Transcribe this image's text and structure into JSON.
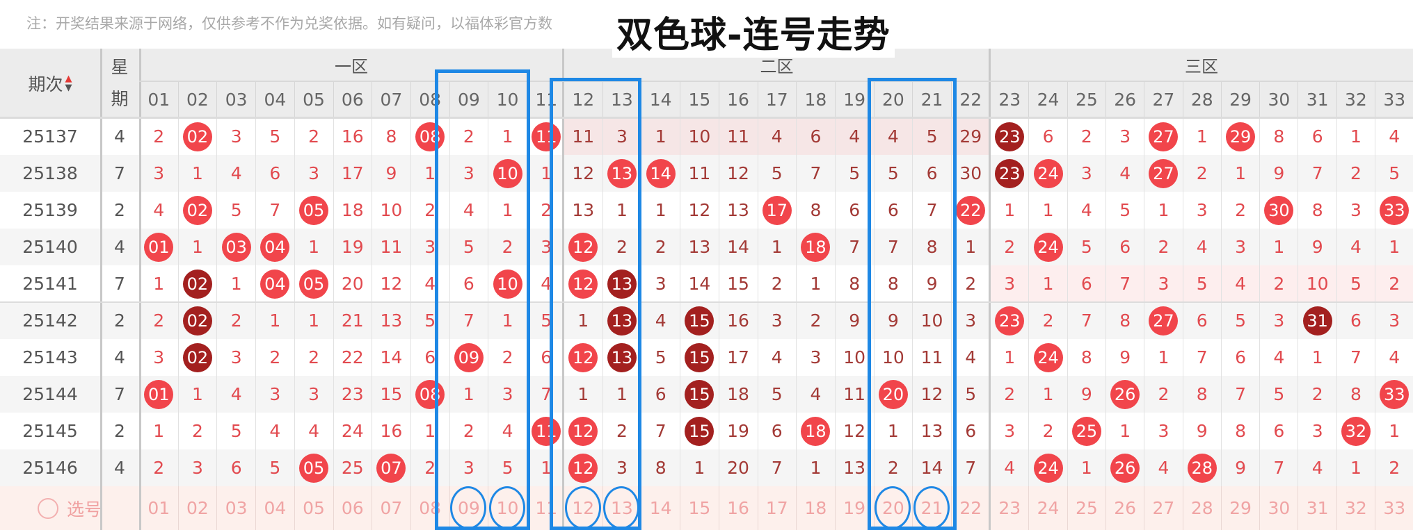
{
  "note": "注：开奖结果来源于网络，仅供参考不作为兑奖依据。如有疑问，以福体彩官方数",
  "title": "双色球-连号走势",
  "header": {
    "period_label": "期次",
    "week_label_top": "星",
    "week_label_bottom": "期",
    "sort_icon": "sort-up-down-arrows",
    "zones": [
      "一区",
      "二区",
      "三区"
    ],
    "numbers": [
      "01",
      "02",
      "03",
      "04",
      "05",
      "06",
      "07",
      "08",
      "09",
      "10",
      "11",
      "12",
      "13",
      "14",
      "15",
      "16",
      "17",
      "18",
      "19",
      "20",
      "21",
      "22",
      "23",
      "24",
      "25",
      "26",
      "27",
      "28",
      "29",
      "30",
      "31",
      "32",
      "33"
    ]
  },
  "colors": {
    "ball_red": "#f1454b",
    "ball_dark": "#a3201f",
    "highlight_box": "#1e88e5"
  },
  "rows": [
    {
      "period": "25137",
      "week": "4",
      "red": [
        "02",
        "08",
        "11",
        "27",
        "29"
      ],
      "dark": [
        "23"
      ],
      "cells": [
        "2",
        "02",
        "3",
        "5",
        "2",
        "16",
        "8",
        "08",
        "2",
        "1",
        "11",
        "11",
        "3",
        "1",
        "10",
        "11",
        "4",
        "6",
        "4",
        "4",
        "5",
        "29",
        "23",
        "6",
        "2",
        "3",
        "27",
        "1",
        "29",
        "8",
        "6",
        "1",
        "4"
      ]
    },
    {
      "period": "25138",
      "week": "7",
      "red": [
        "10",
        "13",
        "14",
        "24",
        "27"
      ],
      "dark": [
        "23"
      ],
      "cells": [
        "3",
        "1",
        "4",
        "6",
        "3",
        "17",
        "9",
        "1",
        "3",
        "10",
        "1",
        "12",
        "13",
        "14",
        "11",
        "12",
        "5",
        "7",
        "5",
        "5",
        "6",
        "30",
        "23",
        "24",
        "3",
        "4",
        "27",
        "2",
        "1",
        "9",
        "7",
        "2",
        "5"
      ]
    },
    {
      "period": "25139",
      "week": "2",
      "red": [
        "02",
        "05",
        "17",
        "22",
        "30",
        "33"
      ],
      "dark": [],
      "cells": [
        "4",
        "02",
        "5",
        "7",
        "05",
        "18",
        "10",
        "2",
        "4",
        "1",
        "2",
        "13",
        "1",
        "1",
        "12",
        "13",
        "17",
        "8",
        "6",
        "6",
        "7",
        "22",
        "1",
        "1",
        "4",
        "5",
        "1",
        "3",
        "2",
        "30",
        "8",
        "3",
        "33"
      ]
    },
    {
      "period": "25140",
      "week": "4",
      "red": [
        "01",
        "03",
        "04",
        "12",
        "18",
        "24"
      ],
      "dark": [],
      "cells": [
        "01",
        "1",
        "03",
        "04",
        "1",
        "19",
        "11",
        "3",
        "5",
        "2",
        "3",
        "12",
        "2",
        "2",
        "13",
        "14",
        "1",
        "18",
        "7",
        "7",
        "8",
        "1",
        "2",
        "24",
        "5",
        "6",
        "2",
        "4",
        "3",
        "1",
        "9",
        "4",
        "1"
      ]
    },
    {
      "period": "25141",
      "week": "7",
      "red": [
        "04",
        "05",
        "10",
        "12"
      ],
      "dark": [
        "02",
        "13"
      ],
      "cells": [
        "1",
        "02",
        "1",
        "04",
        "05",
        "20",
        "12",
        "4",
        "6",
        "10",
        "4",
        "12",
        "13",
        "3",
        "14",
        "15",
        "2",
        "1",
        "8",
        "8",
        "9",
        "2",
        "3",
        "1",
        "6",
        "7",
        "3",
        "5",
        "4",
        "2",
        "10",
        "5",
        "2"
      ]
    },
    {
      "period": "25142",
      "week": "2",
      "red": [
        "23",
        "27"
      ],
      "dark": [
        "02",
        "13",
        "15",
        "31"
      ],
      "cells": [
        "2",
        "02",
        "2",
        "1",
        "1",
        "21",
        "13",
        "5",
        "7",
        "1",
        "5",
        "1",
        "13",
        "4",
        "15",
        "16",
        "3",
        "2",
        "9",
        "9",
        "10",
        "3",
        "23",
        "2",
        "7",
        "8",
        "27",
        "6",
        "5",
        "3",
        "31",
        "6",
        "3"
      ]
    },
    {
      "period": "25143",
      "week": "4",
      "red": [
        "09",
        "12",
        "24"
      ],
      "dark": [
        "02",
        "13",
        "15"
      ],
      "cells": [
        "3",
        "02",
        "3",
        "2",
        "2",
        "22",
        "14",
        "6",
        "09",
        "2",
        "6",
        "12",
        "13",
        "5",
        "15",
        "17",
        "4",
        "3",
        "10",
        "10",
        "11",
        "4",
        "1",
        "24",
        "8",
        "9",
        "1",
        "7",
        "6",
        "4",
        "1",
        "7",
        "4"
      ]
    },
    {
      "period": "25144",
      "week": "7",
      "red": [
        "01",
        "08",
        "20",
        "26",
        "33"
      ],
      "dark": [
        "15"
      ],
      "cells": [
        "01",
        "1",
        "4",
        "3",
        "3",
        "23",
        "15",
        "08",
        "1",
        "3",
        "7",
        "1",
        "1",
        "6",
        "15",
        "18",
        "5",
        "4",
        "11",
        "20",
        "12",
        "5",
        "2",
        "1",
        "9",
        "26",
        "2",
        "8",
        "7",
        "5",
        "2",
        "8",
        "33"
      ]
    },
    {
      "period": "25145",
      "week": "2",
      "red": [
        "11",
        "12",
        "18",
        "25",
        "32"
      ],
      "dark": [
        "15"
      ],
      "cells": [
        "1",
        "2",
        "5",
        "4",
        "4",
        "24",
        "16",
        "1",
        "2",
        "4",
        "11",
        "12",
        "2",
        "7",
        "15",
        "19",
        "6",
        "18",
        "12",
        "1",
        "13",
        "6",
        "3",
        "2",
        "25",
        "1",
        "3",
        "9",
        "8",
        "6",
        "3",
        "32",
        "1"
      ]
    },
    {
      "period": "25146",
      "week": "4",
      "red": [
        "05",
        "07",
        "12",
        "24",
        "26",
        "28"
      ],
      "dark": [],
      "cells": [
        "2",
        "3",
        "6",
        "5",
        "05",
        "25",
        "07",
        "2",
        "3",
        "5",
        "1",
        "12",
        "3",
        "8",
        "1",
        "20",
        "7",
        "1",
        "13",
        "2",
        "14",
        "7",
        "4",
        "24",
        "1",
        "26",
        "4",
        "28",
        "9",
        "7",
        "4",
        "1",
        "2"
      ]
    }
  ],
  "select_row": {
    "label": "选号",
    "icon": "circle-radio-icon",
    "numbers": [
      "01",
      "02",
      "03",
      "04",
      "05",
      "06",
      "07",
      "08",
      "09",
      "10",
      "11",
      "12",
      "13",
      "14",
      "15",
      "16",
      "17",
      "18",
      "19",
      "20",
      "21",
      "22",
      "23",
      "24",
      "25",
      "26",
      "27",
      "28",
      "29",
      "30",
      "31",
      "32",
      "33"
    ]
  },
  "highlight_groups": [
    [
      "09",
      "10"
    ],
    [
      "12",
      "13"
    ],
    [
      "20",
      "21"
    ]
  ]
}
